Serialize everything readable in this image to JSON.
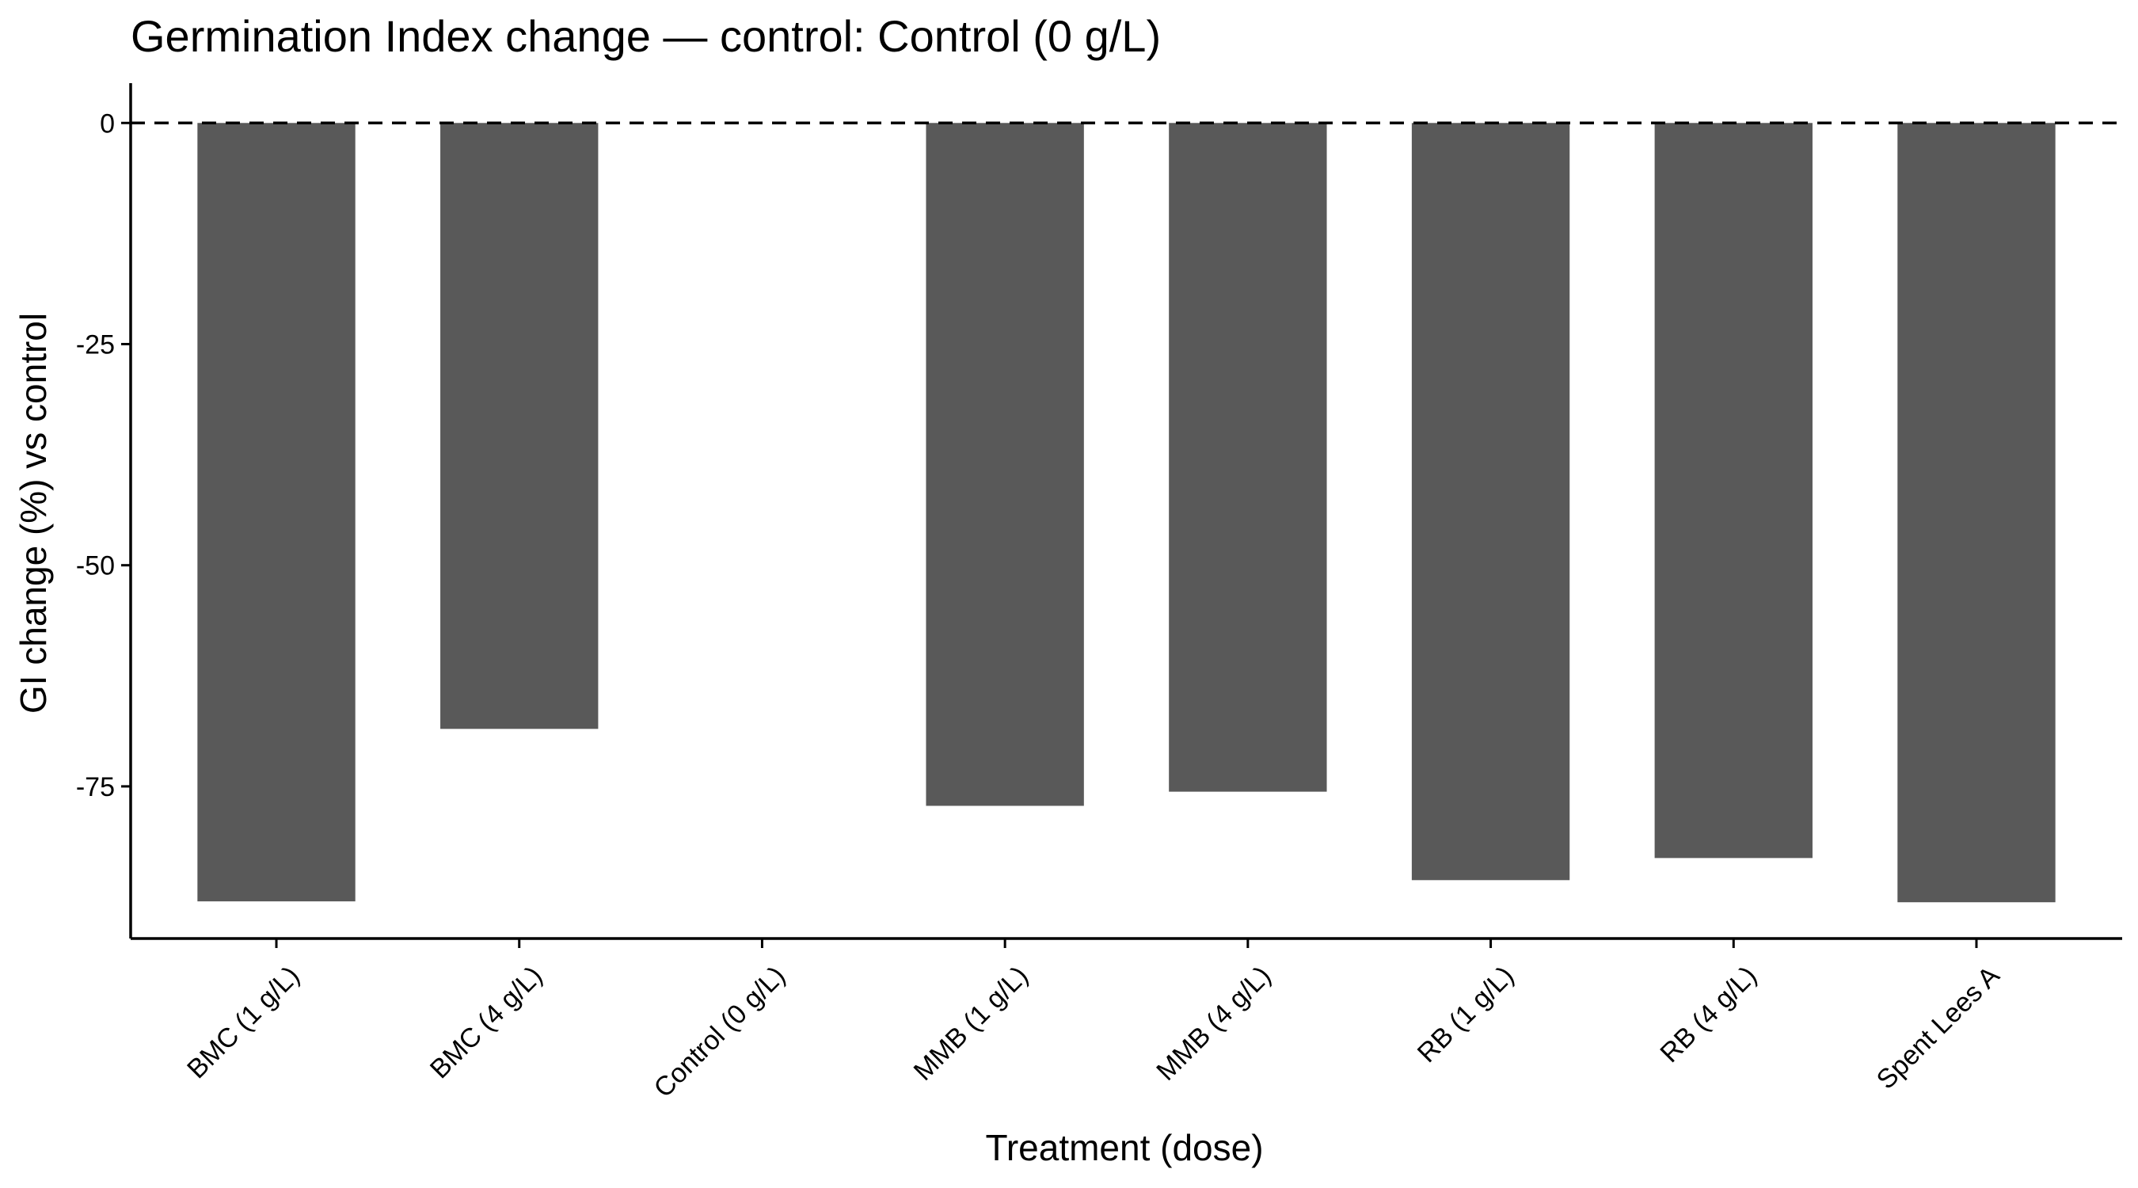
{
  "chart_data": {
    "type": "bar",
    "title": "Germination Index change — control: Control (0 g/L)",
    "xlabel": "Treatment (dose)",
    "ylabel": "GI change (%) vs control",
    "categories": [
      "BMC (1 g/L)",
      "BMC (4 g/L)",
      "Control (0 g/L)",
      "MMB (1 g/L)",
      "MMB (4 g/L)",
      "RB (1 g/L)",
      "RB (4 g/L)",
      "Spent Lees A"
    ],
    "values": [
      -88.0,
      -68.5,
      0,
      -77.2,
      -75.6,
      -85.6,
      -83.1,
      -88.1
    ],
    "ylim": [
      -92.2,
      4.5
    ],
    "yticks": [
      0,
      -25,
      -50,
      -75
    ],
    "ytick_labels": [
      "0",
      "-25",
      "-50",
      "-75"
    ],
    "reference_line": {
      "y": 0,
      "style": "dashed"
    },
    "grid": false,
    "legend": "none",
    "bar_color": "#595959"
  }
}
